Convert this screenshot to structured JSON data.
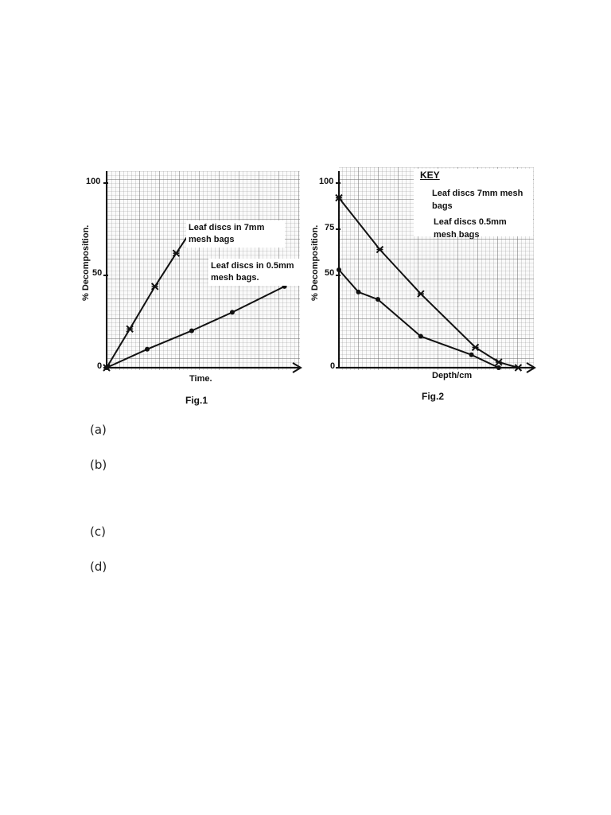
{
  "charts": [
    {
      "id": "fig1",
      "caption": "Fig.1",
      "ylabel": "% Decomposition.",
      "xlabel": "Time.",
      "y_ticks": [
        "100",
        "50",
        "0"
      ],
      "annotations": [
        {
          "id": "label-7mm",
          "lines": [
            "Leaf discs in 7mm",
            "mesh bags"
          ]
        },
        {
          "id": "label-05mm",
          "lines": [
            "Leaf discs in 0.5mm",
            "mesh bags."
          ]
        }
      ]
    },
    {
      "id": "fig2",
      "caption": "Fig.2",
      "ylabel": "% Decomposition.",
      "xlabel": "Depth/cm",
      "y_ticks": [
        "100",
        "75",
        "50",
        "0"
      ],
      "legend": {
        "title": "KEY",
        "entries": [
          {
            "lines": [
              "Leaf discs 7mm mesh",
              "bags"
            ],
            "marker": "cross"
          },
          {
            "lines": [
              "Leaf discs 0.5mm",
              "mesh bags"
            ],
            "marker": "dot"
          }
        ]
      }
    }
  ],
  "chart_data": [
    {
      "type": "line",
      "xlabel": "Time.",
      "ylabel": "% Decomposition.",
      "ylim": [
        0,
        100
      ],
      "xlim": [
        0,
        10
      ],
      "grid": true,
      "series": [
        {
          "name": "Leaf discs in 7mm mesh bags",
          "marker": "cross",
          "points": [
            [
              0,
              0
            ],
            [
              1.2,
              21
            ],
            [
              2.5,
              44
            ],
            [
              3.6,
              62
            ],
            [
              4.3,
              73
            ]
          ]
        },
        {
          "name": "Leaf discs in 0.5mm mesh bags.",
          "marker": "dot",
          "points": [
            [
              0,
              0
            ],
            [
              2.1,
              10
            ],
            [
              4.4,
              20
            ],
            [
              6.5,
              30
            ],
            [
              9.2,
              44
            ]
          ]
        }
      ]
    },
    {
      "type": "line",
      "xlabel": "Depth/cm",
      "ylabel": "% Decomposition.",
      "ylim": [
        0,
        100
      ],
      "xlim": [
        0,
        10
      ],
      "grid": true,
      "legend": "top-right",
      "series": [
        {
          "name": "Leaf discs 7mm mesh bags",
          "marker": "cross",
          "points": [
            [
              0,
              92
            ],
            [
              2.1,
              64
            ],
            [
              4.2,
              40
            ],
            [
              7.0,
              11
            ],
            [
              8.2,
              3
            ],
            [
              9.2,
              0
            ]
          ]
        },
        {
          "name": "Leaf discs 0.5mm mesh bags",
          "marker": "dot",
          "points": [
            [
              0,
              53
            ],
            [
              1.0,
              41
            ],
            [
              2.0,
              37
            ],
            [
              4.2,
              17
            ],
            [
              6.8,
              7
            ],
            [
              8.2,
              0
            ]
          ]
        }
      ]
    }
  ],
  "questions": [
    {
      "label": "(a)"
    },
    {
      "label": "(b)"
    },
    {
      "label": "(c)"
    },
    {
      "label": "(d)"
    }
  ]
}
